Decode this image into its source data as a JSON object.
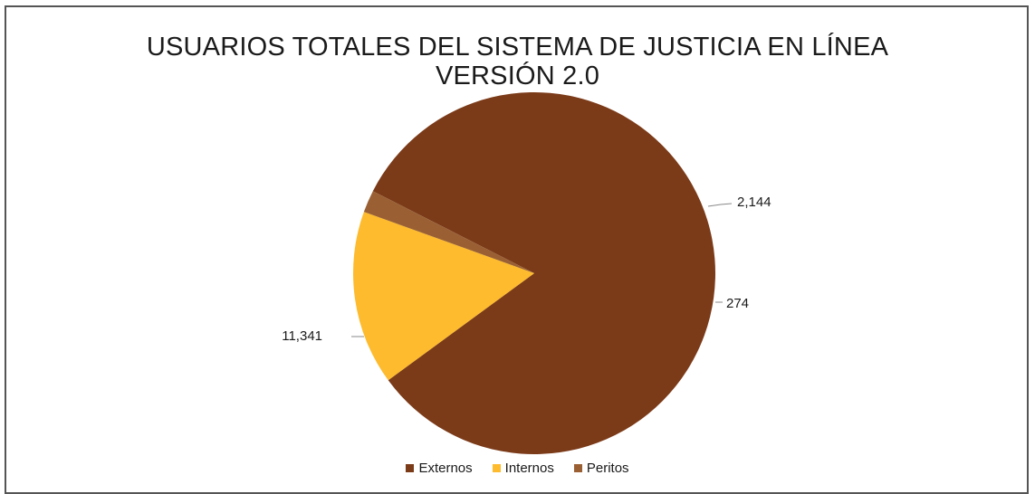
{
  "chart_data": {
    "type": "pie",
    "title": [
      "USUARIOS TOTALES DEL SISTEMA DE JUSTICIA EN LÍNEA",
      "VERSIÓN 2.0"
    ],
    "categories": [
      "Externos",
      "Internos",
      "Peritos"
    ],
    "values": [
      11341,
      2144,
      274
    ],
    "data_labels": [
      "11,341",
      "2,144",
      "274"
    ],
    "colors": [
      "#7b3a18",
      "#fdbb2d",
      "#9a6034"
    ],
    "legend_position": "bottom"
  }
}
